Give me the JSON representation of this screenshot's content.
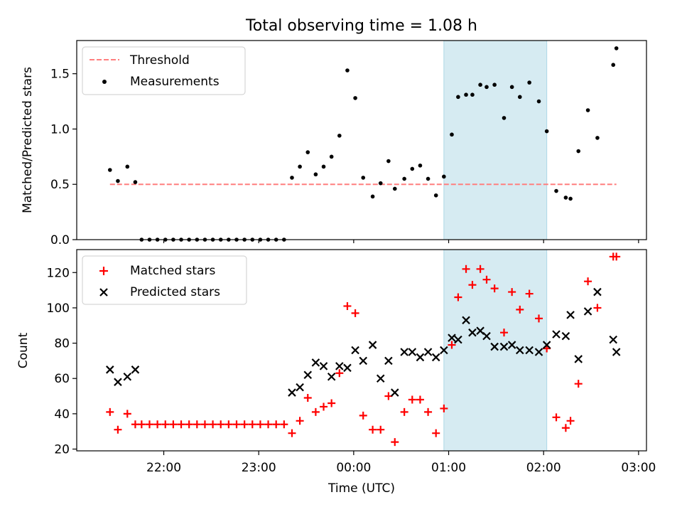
{
  "chart_data": [
    {
      "type": "scatter",
      "title": "Total observing time = 1.08 h",
      "ylabel": "Matched/Predicted stars",
      "xlabel": "",
      "x_unit": "minutes after 00:00 UTC",
      "xlim": [
        -175,
        185
      ],
      "ylim": [
        0,
        1.8
      ],
      "yticks": [
        0.0,
        0.5,
        1.0,
        1.5
      ],
      "ytick_labels": [
        "0.0",
        "0.5",
        "1.0",
        "1.5"
      ],
      "highlight_span": {
        "x": [
          57,
          122
        ],
        "color": "#add8e6"
      },
      "legend": {
        "placement": "top-left",
        "entries": [
          "Threshold",
          "Measurements"
        ]
      },
      "series": [
        {
          "name": "Threshold",
          "style": "dashed-line",
          "color": "#ff7f7f",
          "x": [
            -154,
            166
          ],
          "y": [
            0.5,
            0.5
          ]
        },
        {
          "name": "Measurements",
          "style": "dot",
          "color": "#000000",
          "x": [
            -154,
            -149,
            -143,
            -138,
            -134,
            -129,
            -124,
            -119,
            -114,
            -109,
            -104,
            -99,
            -94,
            -89,
            -84,
            -79,
            -74,
            -69,
            -64,
            -59,
            -54,
            -49,
            -44,
            -39,
            -34,
            -29,
            -24,
            -19,
            -14,
            -9,
            -4,
            1,
            6,
            12,
            17,
            22,
            26,
            32,
            37,
            42,
            47,
            52,
            57,
            62,
            66,
            71,
            75,
            80,
            84,
            89,
            95,
            100,
            105,
            111,
            117,
            122,
            128,
            134,
            137,
            142,
            148,
            154,
            164,
            166
          ],
          "y": [
            0.63,
            0.53,
            0.66,
            0.52,
            0.0,
            0.0,
            0.0,
            0.0,
            0.0,
            0.0,
            0.0,
            0.0,
            0.0,
            0.0,
            0.0,
            0.0,
            0.0,
            0.0,
            0.0,
            0.0,
            0.0,
            0.0,
            0.0,
            0.56,
            0.66,
            0.79,
            0.59,
            0.66,
            0.75,
            0.94,
            1.53,
            1.28,
            0.56,
            0.39,
            0.51,
            0.71,
            0.46,
            0.55,
            0.64,
            0.67,
            0.55,
            0.4,
            0.57,
            0.95,
            1.29,
            1.31,
            1.31,
            1.4,
            1.38,
            1.4,
            1.1,
            1.38,
            1.29,
            1.42,
            1.25,
            0.98,
            0.44,
            0.38,
            0.37,
            0.8,
            1.17,
            0.92,
            1.58,
            1.73
          ]
        }
      ]
    },
    {
      "type": "scatter",
      "title": "",
      "xlabel": "Time (UTC)",
      "ylabel": "Count",
      "x_unit": "minutes after 00:00 UTC",
      "xlim": [
        -175,
        185
      ],
      "ylim": [
        19,
        133
      ],
      "yticks": [
        20,
        40,
        60,
        80,
        100,
        120
      ],
      "ytick_labels": [
        "20",
        "40",
        "60",
        "80",
        "100",
        "120"
      ],
      "xticks": [
        -120,
        -60,
        0,
        60,
        120,
        180
      ],
      "xtick_labels": [
        "22:00",
        "23:00",
        "00:00",
        "01:00",
        "02:00",
        "03:00"
      ],
      "highlight_span": {
        "x": [
          57,
          122
        ],
        "color": "#add8e6"
      },
      "legend": {
        "placement": "top-left",
        "entries": [
          "Matched stars",
          "Predicted stars"
        ]
      },
      "series": [
        {
          "name": "Matched stars",
          "marker": "plus",
          "color": "#ff0000",
          "x": [
            -154,
            -149,
            -143,
            -138,
            -134,
            -129,
            -124,
            -119,
            -114,
            -109,
            -104,
            -99,
            -94,
            -89,
            -84,
            -79,
            -74,
            -69,
            -64,
            -59,
            -54,
            -49,
            -44,
            -39,
            -34,
            -29,
            -24,
            -19,
            -14,
            -9,
            -4,
            1,
            6,
            12,
            17,
            22,
            26,
            32,
            37,
            42,
            47,
            52,
            57,
            62,
            66,
            71,
            75,
            80,
            84,
            89,
            95,
            100,
            105,
            111,
            117,
            122,
            128,
            134,
            137,
            142,
            148,
            154,
            164,
            166
          ],
          "y": [
            41,
            31,
            40,
            34,
            34,
            34,
            34,
            34,
            34,
            34,
            34,
            34,
            34,
            34,
            34,
            34,
            34,
            34,
            34,
            34,
            34,
            34,
            34,
            29,
            36,
            49,
            41,
            44,
            46,
            63,
            101,
            97,
            39,
            31,
            31,
            50,
            24,
            41,
            48,
            48,
            41,
            29,
            43,
            79,
            106,
            122,
            113,
            122,
            116,
            111,
            86,
            109,
            99,
            108,
            94,
            77,
            38,
            32,
            36,
            57,
            115,
            100,
            129,
            129
          ]
        },
        {
          "name": "Predicted stars",
          "marker": "x",
          "color": "#000000",
          "x": [
            -154,
            -149,
            -143,
            -138,
            -39,
            -34,
            -29,
            -24,
            -19,
            -14,
            -9,
            -4,
            1,
            6,
            12,
            17,
            22,
            26,
            32,
            37,
            42,
            47,
            52,
            57,
            62,
            66,
            71,
            75,
            80,
            84,
            89,
            95,
            100,
            105,
            111,
            117,
            122,
            128,
            134,
            137,
            142,
            148,
            154,
            164,
            166
          ],
          "y": [
            65,
            58,
            61,
            65,
            52,
            55,
            62,
            69,
            67,
            61,
            67,
            66,
            76,
            70,
            79,
            60,
            70,
            52,
            75,
            75,
            72,
            75,
            72,
            76,
            83,
            82,
            93,
            86,
            87,
            84,
            78,
            78,
            79,
            76,
            76,
            75,
            79,
            85,
            84,
            96,
            71,
            98,
            109,
            82,
            75
          ]
        }
      ]
    }
  ]
}
